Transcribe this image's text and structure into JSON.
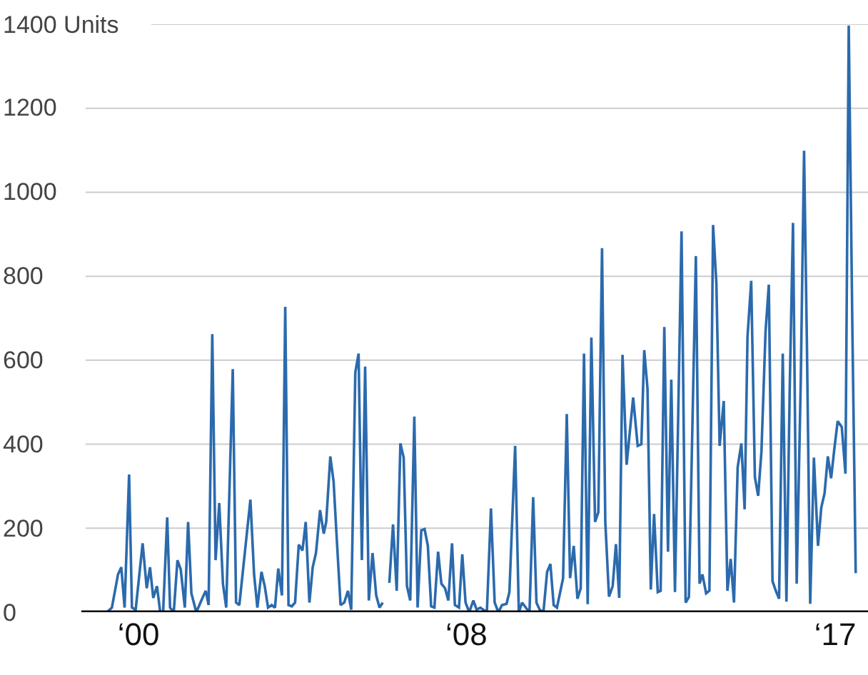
{
  "chart_data": {
    "type": "line",
    "x": [
      -0.77,
      -0.65,
      -0.5,
      -0.42,
      -0.34,
      -0.23,
      -0.16,
      -0.07,
      0.1,
      0.2,
      0.28,
      0.36,
      0.45,
      0.53,
      0.6,
      0.7,
      0.77,
      0.86,
      0.95,
      1.03,
      1.13,
      1.21,
      1.29,
      1.41,
      1.56,
      1.64,
      1.71,
      1.8,
      1.88,
      1.97,
      2.06,
      2.14,
      2.3,
      2.38,
      2.46,
      2.73,
      2.82,
      2.9,
      3.0,
      3.08,
      3.16,
      3.25,
      3.33,
      3.41,
      3.5,
      3.58,
      3.66,
      3.74,
      3.82,
      3.91,
      4.0,
      4.08,
      4.17,
      4.25,
      4.33,
      4.43,
      4.52,
      4.58,
      4.68,
      4.76,
      4.83,
      4.93,
      5.02,
      5.11,
      5.19,
      5.29,
      5.37,
      5.45,
      5.53,
      5.62,
      5.71,
      5.8,
      5.88,
      5.96,
      6.04,
      6.12,
      6.21,
      6.3,
      6.39,
      6.47,
      6.55,
      6.63,
      6.73,
      6.81,
      6.9,
      6.98,
      7.06,
      7.14,
      7.22,
      7.31,
      7.39,
      7.48,
      7.56,
      7.65,
      7.72,
      7.82,
      7.9,
      7.98,
      8.07,
      8.17,
      8.25,
      8.34,
      8.5,
      8.6,
      8.69,
      8.78,
      8.87,
      8.98,
      9.05,
      9.19,
      9.28,
      9.36,
      9.45,
      9.54,
      9.63,
      9.71,
      9.79,
      9.88,
      9.97,
      10.05,
      10.13,
      10.21,
      10.36,
      10.45,
      10.53,
      10.62,
      10.71,
      10.79,
      10.87,
      10.96,
      11.05,
      11.14,
      11.22,
      11.31,
      11.39,
      11.48,
      11.57,
      11.65,
      11.73,
      11.81,
      11.91,
      12.07,
      12.18,
      12.27,
      12.34,
      12.42,
      12.5,
      12.58,
      12.67,
      12.74,
      12.83,
      12.92,
      13.0,
      13.09,
      13.17,
      13.25,
      13.35,
      13.43,
      13.6,
      13.69,
      13.76,
      13.85,
      13.93,
      14.02,
      14.1,
      14.18,
      14.28,
      14.37,
      14.45,
      14.53,
      14.62,
      14.71,
      14.79,
      14.86,
      14.95,
      15.04,
      15.12,
      15.2,
      15.3,
      15.38,
      15.47,
      15.55,
      15.63,
      15.72,
      15.81,
      15.89,
      15.97,
      16.06,
      16.16,
      16.24,
      16.31,
      16.39,
      16.48,
      16.58,
      16.66,
      16.74,
      16.82,
      16.9,
      16.98,
      17.06,
      17.16,
      17.25,
      17.33,
      17.42,
      17.5
    ],
    "series": [
      {
        "color": "#2b6aad",
        "values": [
          0,
          11,
          90,
          107,
          11,
          328,
          11,
          6,
          164,
          57,
          107,
          34,
          62,
          0,
          0,
          226,
          11,
          0,
          124,
          102,
          11,
          215,
          45,
          0,
          34,
          51,
          17,
          662,
          124,
          260,
          68,
          11,
          579,
          23,
          17,
          268,
          90,
          11,
          96,
          62,
          11,
          17,
          11,
          104,
          40,
          727,
          17,
          14,
          23,
          161,
          147,
          215,
          23,
          107,
          141,
          243,
          187,
          215,
          371,
          311,
          187,
          17,
          23,
          51,
          6,
          571,
          616,
          124,
          585,
          28,
          141,
          40,
          11,
          23,
          null,
          70,
          209,
          51,
          402,
          368,
          62,
          28,
          466,
          11,
          195,
          198,
          158,
          14,
          11,
          144,
          68,
          57,
          28,
          164,
          17,
          11,
          138,
          23,
          0,
          28,
          6,
          11,
          0,
          247,
          23,
          0,
          17,
          20,
          48,
          396,
          0,
          23,
          11,
          0,
          274,
          23,
          6,
          0,
          96,
          115,
          17,
          11,
          81,
          472,
          81,
          158,
          32,
          57,
          616,
          19,
          654,
          215,
          238,
          867,
          215,
          37,
          62,
          162,
          34,
          613,
          351,
          511,
          396,
          400,
          624,
          532,
          54,
          234,
          48,
          51,
          679,
          144,
          554,
          48,
          475,
          907,
          23,
          36,
          848,
          68,
          90,
          45,
          51,
          922,
          783,
          396,
          503,
          51,
          127,
          23,
          345,
          402,
          245,
          656,
          789,
          322,
          277,
          382,
          668,
          780,
          74,
          51,
          32,
          616,
          25,
          532,
          927,
          68,
          554,
          1099,
          633,
          20,
          368,
          158,
          249,
          283,
          371,
          319,
          390,
          455,
          441,
          330,
          1397,
          667,
          93
        ]
      }
    ],
    "xlim": [
      -3.38,
      17.8
    ],
    "xticks": [
      {
        "value": 0,
        "label": "‘00"
      },
      {
        "value": 8,
        "label": "‘08"
      },
      {
        "value": 17,
        "label": "‘17"
      }
    ],
    "ylim": [
      0,
      1400
    ],
    "yticks": [
      0,
      200,
      400,
      600,
      800,
      1000,
      1200,
      {
        "value": 1400,
        "label": "1400 Units"
      }
    ],
    "grid": "y"
  }
}
